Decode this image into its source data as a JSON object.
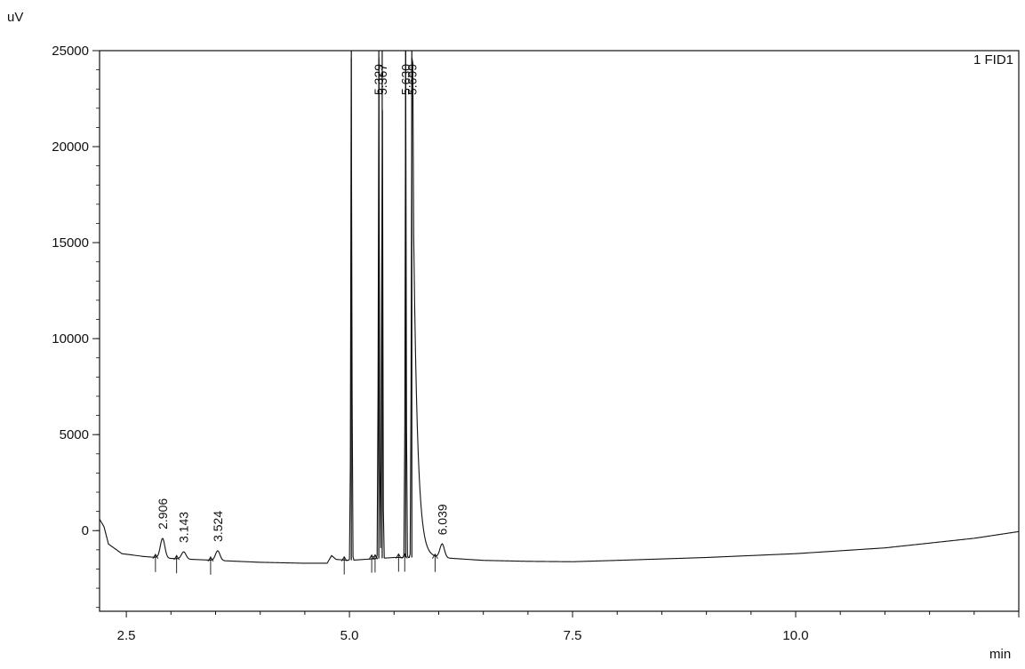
{
  "chart_data": {
    "type": "line",
    "title": "",
    "ylabel": "uV",
    "xlabel": "min",
    "trace_label": "1 FID1",
    "xlim": [
      2.2,
      12.5
    ],
    "ylim": [
      -4200,
      25000
    ],
    "grid": false,
    "y_ticks": [
      {
        "value": 25000,
        "label": "25000"
      },
      {
        "value": 20000,
        "label": "20000"
      },
      {
        "value": 15000,
        "label": "15000"
      },
      {
        "value": 10000,
        "label": "10000"
      },
      {
        "value": 5000,
        "label": "5000"
      },
      {
        "value": 0,
        "label": "0"
      }
    ],
    "x_ticks": [
      {
        "value": 2.5,
        "label": "2.5"
      },
      {
        "value": 5.0,
        "label": "5.0"
      },
      {
        "value": 7.5,
        "label": "7.5"
      },
      {
        "value": 10.0,
        "label": "10.0"
      }
    ],
    "peaks": [
      {
        "rt": 2.906,
        "label": "2.906",
        "height": -400,
        "label_shown": true
      },
      {
        "rt": 3.143,
        "label": "3.143",
        "height": -1100,
        "label_shown": true
      },
      {
        "rt": 3.524,
        "label": "3.524",
        "height": -1050,
        "label_shown": true
      },
      {
        "rt": 5.021,
        "label": "",
        "height": 25000,
        "label_shown": false
      },
      {
        "rt": 5.329,
        "label": "5.329",
        "height": 25000,
        "label_shown": true
      },
      {
        "rt": 5.367,
        "label": "5.367",
        "height": 25000,
        "label_shown": true
      },
      {
        "rt": 5.63,
        "label": "5.630",
        "height": 25000,
        "label_shown": true
      },
      {
        "rt": 5.699,
        "label": "5.699",
        "height": 25000,
        "label_shown": true
      },
      {
        "rt": 6.039,
        "label": "6.039",
        "height": -700,
        "label_shown": true
      }
    ],
    "baseline": [
      {
        "x": 2.2,
        "y": 600
      },
      {
        "x": 2.25,
        "y": 200
      },
      {
        "x": 2.3,
        "y": -700
      },
      {
        "x": 2.45,
        "y": -1200
      },
      {
        "x": 2.7,
        "y": -1350
      },
      {
        "x": 3.0,
        "y": -1450
      },
      {
        "x": 3.5,
        "y": -1550
      },
      {
        "x": 4.0,
        "y": -1650
      },
      {
        "x": 4.5,
        "y": -1700
      },
      {
        "x": 4.75,
        "y": -1700
      },
      {
        "x": 4.8,
        "y": -1300
      },
      {
        "x": 4.85,
        "y": -1500
      },
      {
        "x": 5.0,
        "y": -1550
      },
      {
        "x": 5.5,
        "y": -1400
      },
      {
        "x": 6.0,
        "y": -1400
      },
      {
        "x": 6.5,
        "y": -1550
      },
      {
        "x": 7.0,
        "y": -1600
      },
      {
        "x": 7.5,
        "y": -1620
      },
      {
        "x": 8.0,
        "y": -1550
      },
      {
        "x": 9.0,
        "y": -1400
      },
      {
        "x": 10.0,
        "y": -1200
      },
      {
        "x": 11.0,
        "y": -900
      },
      {
        "x": 12.0,
        "y": -400
      },
      {
        "x": 12.5,
        "y": -50
      }
    ]
  }
}
